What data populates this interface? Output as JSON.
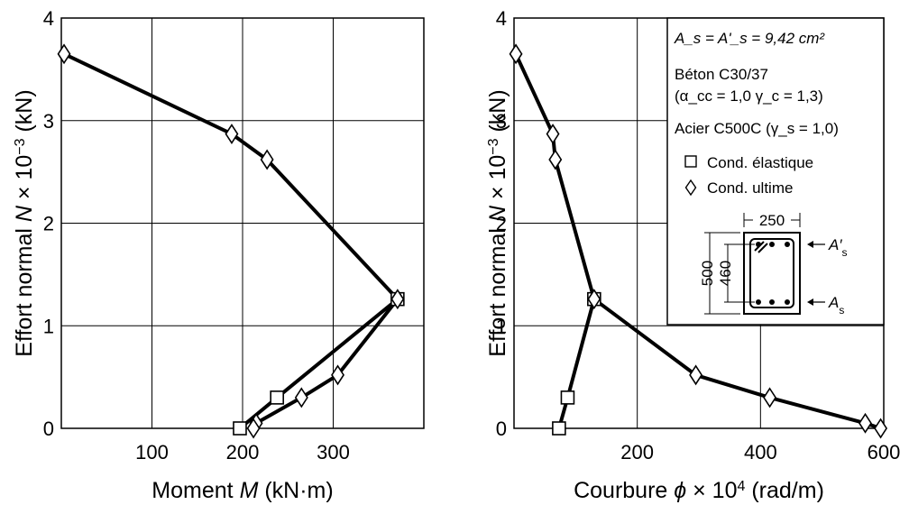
{
  "chart_data": [
    {
      "type": "line",
      "xlabel": "Moment M (kN·m)",
      "xlabel_parts": [
        "Moment ",
        "M",
        " (kN·m)"
      ],
      "ylabel": "Effort normal N × 10⁻³ (kN)",
      "xlim": [
        0,
        400
      ],
      "ylim": [
        0,
        4
      ],
      "xticks": [
        100,
        200,
        300
      ],
      "yticks": [
        0,
        1,
        2,
        3,
        4
      ],
      "grid": true,
      "series": [
        {
          "name": "Cond. élastique",
          "marker": "square",
          "points": [
            [
              197,
              0
            ],
            [
              238,
              0.3
            ],
            [
              371,
              1.26
            ]
          ]
        },
        {
          "name": "Cond. ultime",
          "marker": "diamond",
          "points": [
            [
              3,
              3.65
            ],
            [
              188,
              2.87
            ],
            [
              227,
              2.62
            ],
            [
              371,
              1.26
            ],
            [
              305,
              0.52
            ],
            [
              265,
              0.3
            ],
            [
              215,
              0.05
            ],
            [
              212,
              0
            ]
          ]
        }
      ]
    },
    {
      "type": "line",
      "xlabel": "Courbure ϕ × 10⁴ (rad/m)",
      "ylabel": "Effort normal N × 10⁻³ (kN)",
      "xlim": [
        0,
        600
      ],
      "ylim": [
        0,
        4
      ],
      "xticks": [
        200,
        400,
        600
      ],
      "yticks": [
        0,
        1,
        2,
        3,
        4
      ],
      "grid": true,
      "series": [
        {
          "name": "Cond. élastique",
          "marker": "square",
          "points": [
            [
              73,
              0
            ],
            [
              87,
              0.3
            ],
            [
              130,
              1.26
            ]
          ]
        },
        {
          "name": "Cond. ultime",
          "marker": "diamond",
          "points": [
            [
              3,
              3.65
            ],
            [
              63,
              2.87
            ],
            [
              67,
              2.62
            ],
            [
              130,
              1.26
            ],
            [
              295,
              0.52
            ],
            [
              415,
              0.3
            ],
            [
              570,
              0.05
            ],
            [
              595,
              0
            ]
          ]
        }
      ],
      "legend": {
        "placement": "top-right",
        "lines": [
          "Béton C30/37",
          "Acier C500C"
        ],
        "as_eq": "A_s = A'_s = 9,42 cm²",
        "concrete_params": "(α_cc = 1,0  γ_c = 1,3)",
        "steel_param": "(γ_s = 1,0)",
        "entries": [
          "Cond. élastique",
          "Cond. ultime"
        ],
        "section": {
          "width": "250",
          "height": "500",
          "inner": "460",
          "top_steel": "A's",
          "bottom_steel": "As"
        }
      }
    }
  ]
}
